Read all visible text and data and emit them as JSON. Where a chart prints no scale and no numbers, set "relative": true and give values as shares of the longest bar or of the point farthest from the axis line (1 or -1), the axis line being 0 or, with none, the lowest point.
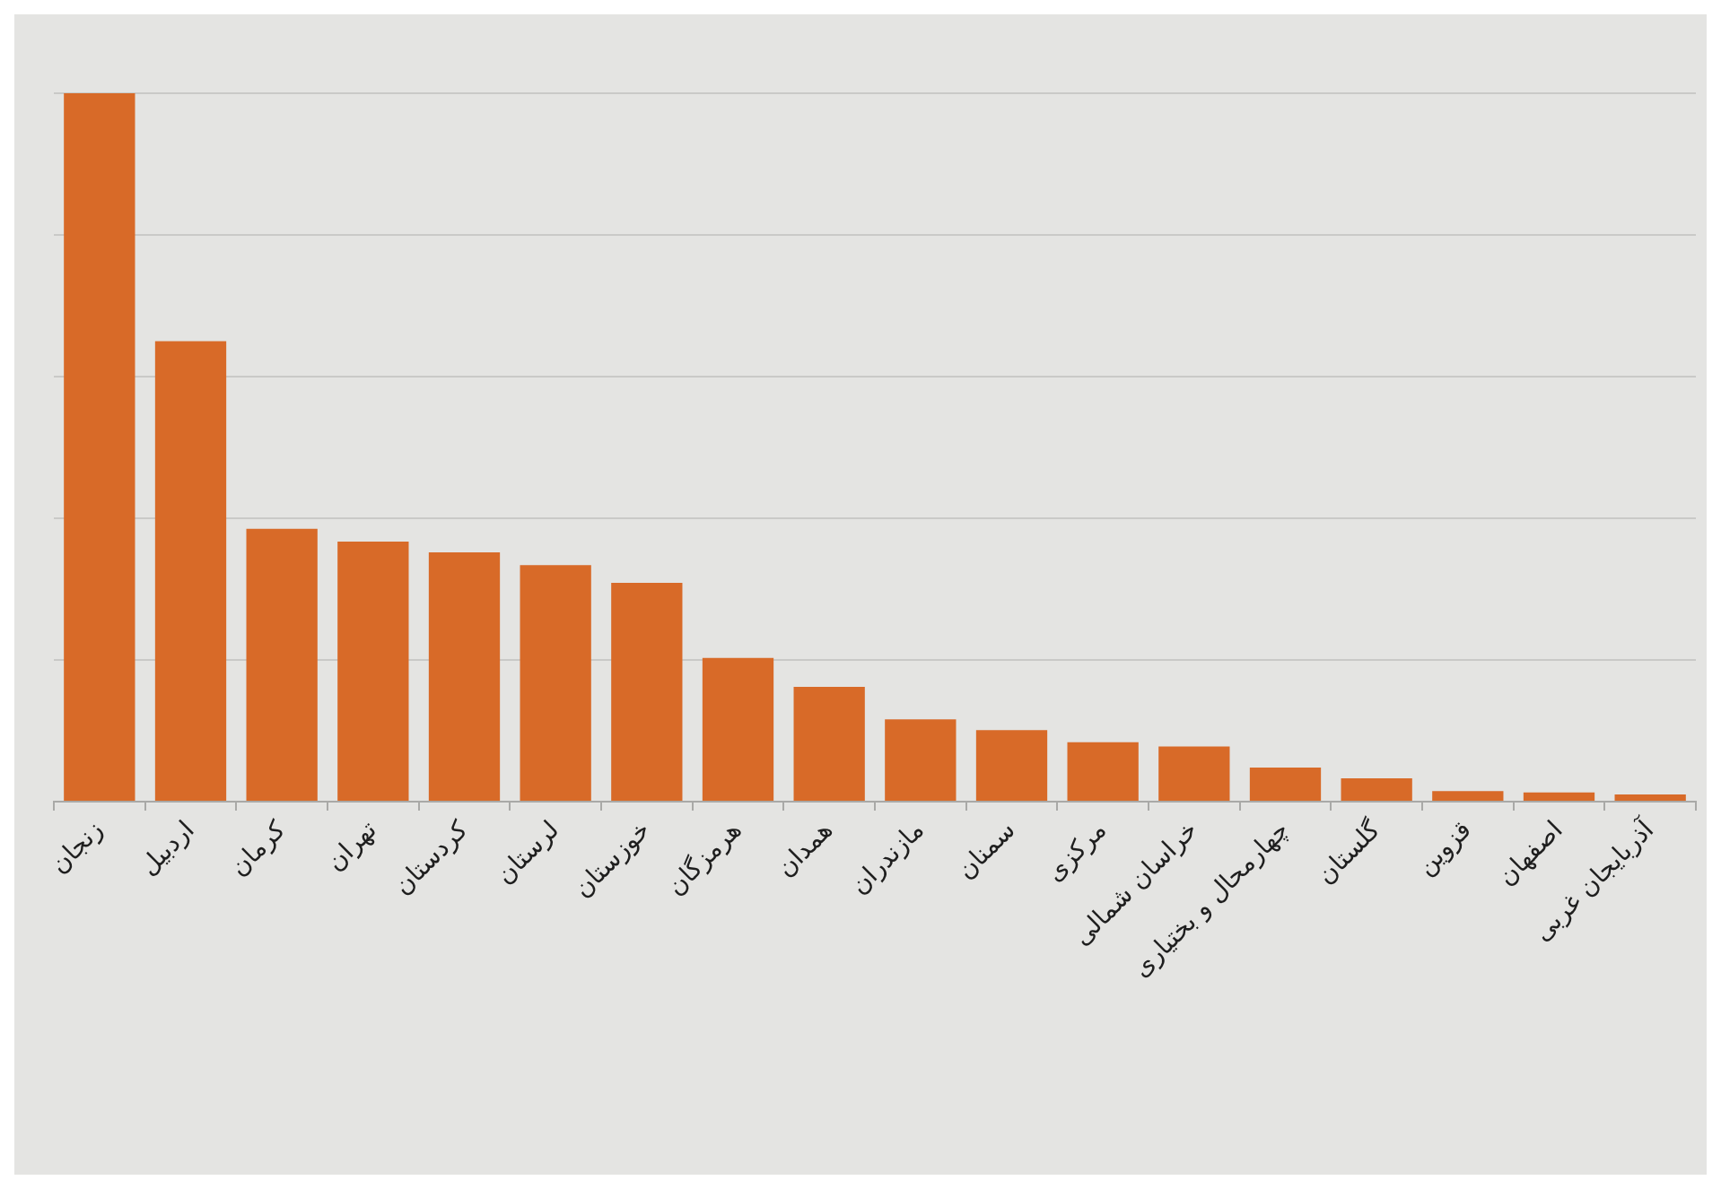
{
  "chart_data": {
    "type": "bar",
    "relative": true,
    "categories": [
      "زنجان",
      "اردبیل",
      "کرمان",
      "تهران",
      "کردستان",
      "لرستان",
      "خوزستان",
      "هرمزگان",
      "همدان",
      "مازندران",
      "سمنان",
      "مرکزی",
      "خراسان شمالی",
      "چهارمحال و بختیاری",
      "گلستان",
      "قزوین",
      "اصفهان",
      "آذربایجان غربی"
    ],
    "values": [
      1,
      0.65,
      0.385,
      0.367,
      0.352,
      0.334,
      0.309,
      0.203,
      0.162,
      0.116,
      0.101,
      0.084,
      0.078,
      0.048,
      0.033,
      0.015,
      0.013,
      0.01
    ],
    "color": "#d86a28",
    "grid": "y"
  }
}
